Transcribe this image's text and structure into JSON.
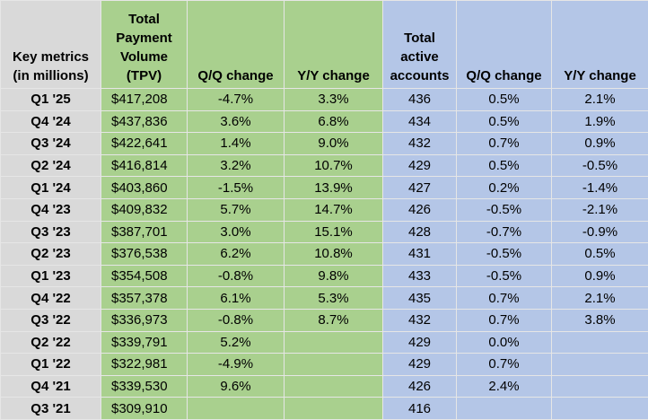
{
  "table": {
    "header": [
      [
        "Key metrics",
        "(in millions)"
      ],
      [
        "Total",
        "Payment",
        "Volume",
        "(TPV)"
      ],
      [
        "Q/Q change"
      ],
      [
        "Y/Y change"
      ],
      [
        "Total",
        "active",
        "accounts"
      ],
      [
        "Q/Q change"
      ],
      [
        "Y/Y change"
      ]
    ],
    "rows": [
      [
        "Q1 '25",
        "$417,208",
        "-4.7%",
        "3.3%",
        "436",
        "0.5%",
        "2.1%"
      ],
      [
        "Q4 '24",
        "$437,836",
        "3.6%",
        "6.8%",
        "434",
        "0.5%",
        "1.9%"
      ],
      [
        "Q3 '24",
        "$422,641",
        "1.4%",
        "9.0%",
        "432",
        "0.7%",
        "0.9%"
      ],
      [
        "Q2 '24",
        "$416,814",
        "3.2%",
        "10.7%",
        "429",
        "0.5%",
        "-0.5%"
      ],
      [
        "Q1 '24",
        "$403,860",
        "-1.5%",
        "13.9%",
        "427",
        "0.2%",
        "-1.4%"
      ],
      [
        "Q4 '23",
        "$409,832",
        "5.7%",
        "14.7%",
        "426",
        "-0.5%",
        "-2.1%"
      ],
      [
        "Q3 '23",
        "$387,701",
        "3.0%",
        "15.1%",
        "428",
        "-0.7%",
        "-0.9%"
      ],
      [
        "Q2 '23",
        "$376,538",
        "6.2%",
        "10.8%",
        "431",
        "-0.5%",
        "0.5%"
      ],
      [
        "Q1 '23",
        "$354,508",
        "-0.8%",
        "9.8%",
        "433",
        "-0.5%",
        "0.9%"
      ],
      [
        "Q4 '22",
        "$357,378",
        "6.1%",
        "5.3%",
        "435",
        "0.7%",
        "2.1%"
      ],
      [
        "Q3 '22",
        "$336,973",
        "-0.8%",
        "8.7%",
        "432",
        "0.7%",
        "3.8%"
      ],
      [
        "Q2 '22",
        "$339,791",
        "5.2%",
        null,
        "429",
        "0.0%",
        null
      ],
      [
        "Q1 '22",
        "$322,981",
        "-4.9%",
        null,
        "429",
        "0.7%",
        null
      ],
      [
        "Q4 '21",
        "$339,530",
        "9.6%",
        null,
        "426",
        "2.4%",
        null
      ],
      [
        "Q3 '21",
        "$309,910",
        null,
        null,
        "416",
        null,
        null
      ]
    ]
  }
}
